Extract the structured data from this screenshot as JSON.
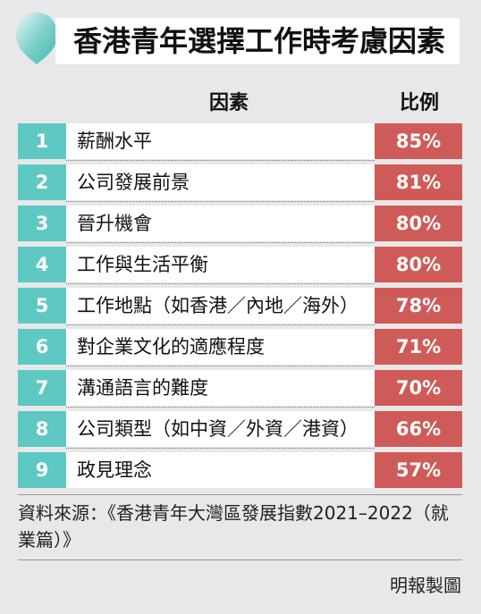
{
  "title": "香港青年選擇工作時考慮因素",
  "headers": {
    "factor": "因素",
    "percentage": "比例"
  },
  "colors": {
    "number_bg": "#5ec8c3",
    "percentage_bg": "#cf5b58",
    "leaf": "#5ec8c3"
  },
  "chart_data": {
    "type": "table",
    "title": "香港青年選擇工作時考慮因素",
    "columns": [
      "因素",
      "比例"
    ],
    "rows": [
      {
        "rank": "1",
        "factor": "薪酬水平",
        "value": 85,
        "display": "85%"
      },
      {
        "rank": "2",
        "factor": "公司發展前景",
        "value": 81,
        "display": "81%"
      },
      {
        "rank": "3",
        "factor": "晉升機會",
        "value": 80,
        "display": "80%"
      },
      {
        "rank": "4",
        "factor": "工作與生活平衡",
        "value": 80,
        "display": "80%"
      },
      {
        "rank": "5",
        "factor": "工作地點（如香港／內地／海外）",
        "value": 78,
        "display": "78%"
      },
      {
        "rank": "6",
        "factor": "對企業文化的適應程度",
        "value": 71,
        "display": "71%"
      },
      {
        "rank": "7",
        "factor": "溝通語言的難度",
        "value": 70,
        "display": "70%"
      },
      {
        "rank": "8",
        "factor": "公司類型（如中資／外資／港資）",
        "value": 66,
        "display": "66%"
      },
      {
        "rank": "9",
        "factor": "政見理念",
        "value": 57,
        "display": "57%"
      }
    ]
  },
  "source": "資料來源：《香港青年大灣區發展指數2021–2022（就業篇）》",
  "credit": "明報製圖"
}
